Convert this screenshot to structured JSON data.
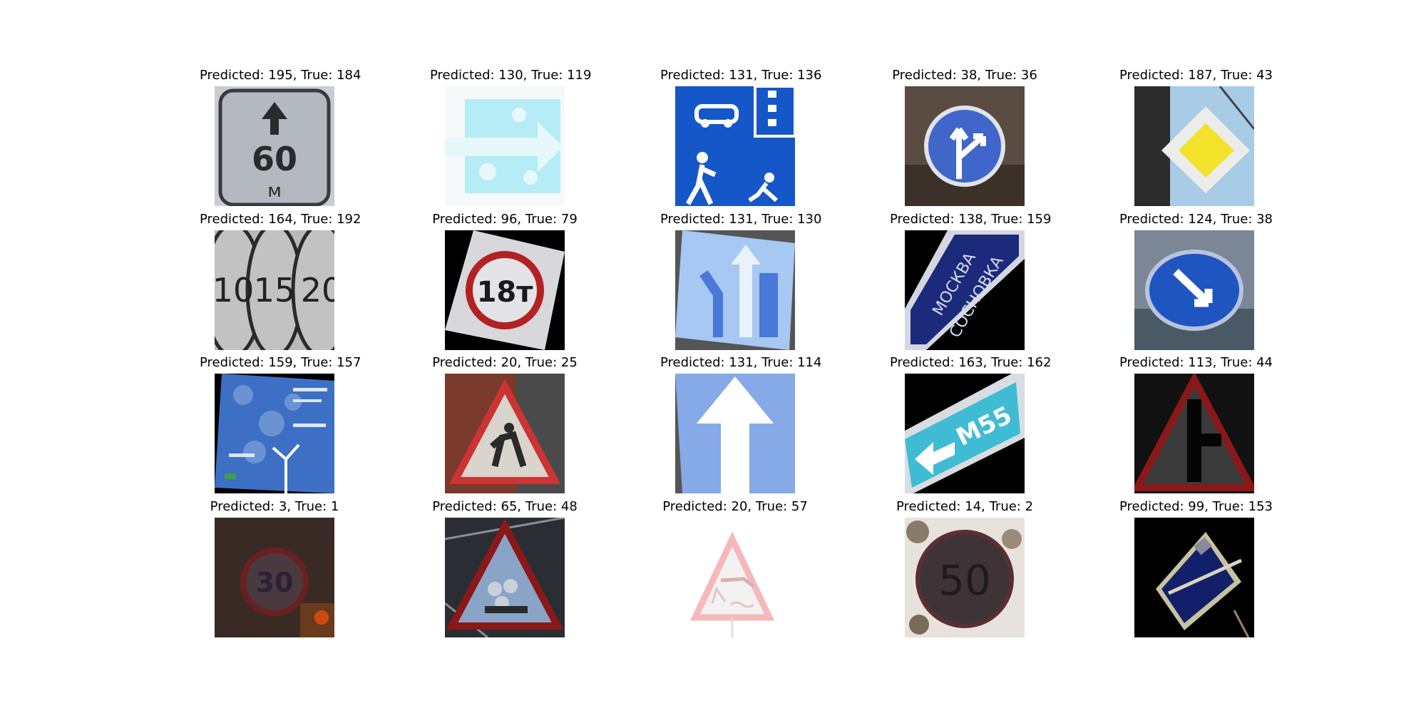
{
  "grid": [
    {
      "label": "Predicted: 195, True: 184",
      "icon": "distance-60m-sign-image"
    },
    {
      "label": "Predicted: 130, True: 119",
      "icon": "light-blue-direction-sign-image"
    },
    {
      "label": "Predicted: 131, True: 136",
      "icon": "living-zone-sign-image"
    },
    {
      "label": "Predicted: 38, True: 36",
      "icon": "straight-or-right-sign-image"
    },
    {
      "label": "Predicted: 187, True: 43",
      "icon": "priority-road-sign-image"
    },
    {
      "label": "Predicted: 164, True: 192",
      "icon": "speed-limit-signs-10-15-20-image"
    },
    {
      "label": "Predicted: 96, True: 79",
      "icon": "max-18t-sign-image"
    },
    {
      "label": "Predicted: 131, True: 130",
      "icon": "lane-direction-sign-image"
    },
    {
      "label": "Predicted: 138, True: 159",
      "icon": "moskva-sosnovka-direction-sign-image"
    },
    {
      "label": "Predicted: 124, True: 38",
      "icon": "keep-right-sign-image"
    },
    {
      "label": "Predicted: 159, True: 157",
      "icon": "blue-route-board-image"
    },
    {
      "label": "Predicted: 20, True: 25",
      "icon": "roadworks-sign-image"
    },
    {
      "label": "Predicted: 131, True: 114",
      "icon": "one-way-arrow-sign-image"
    },
    {
      "label": "Predicted: 163, True: 162",
      "icon": "m55-route-sign-image"
    },
    {
      "label": "Predicted: 113, True: 44",
      "icon": "side-road-warning-sign-image"
    },
    {
      "label": "Predicted: 3, True: 1",
      "icon": "dark-speed-30-sign-image"
    },
    {
      "label": "Predicted: 65, True: 48",
      "icon": "level-crossing-warning-image"
    },
    {
      "label": "Predicted: 20, True: 57",
      "icon": "river-bank-warning-image"
    },
    {
      "label": "Predicted: 14, True: 2",
      "icon": "speed-50-sign-image"
    },
    {
      "label": "Predicted: 99, True: 153",
      "icon": "end-of-main-road-sign-image"
    }
  ],
  "sign_text": {
    "s0": "60",
    "s0b": "м",
    "s5a": "10",
    "s5b": "15",
    "s5c": "20",
    "s6": "18т",
    "s8a": "МОСКВА",
    "s8b": "СОСНОВКА",
    "s13": "М55",
    "s15": "30",
    "s18": "50"
  }
}
